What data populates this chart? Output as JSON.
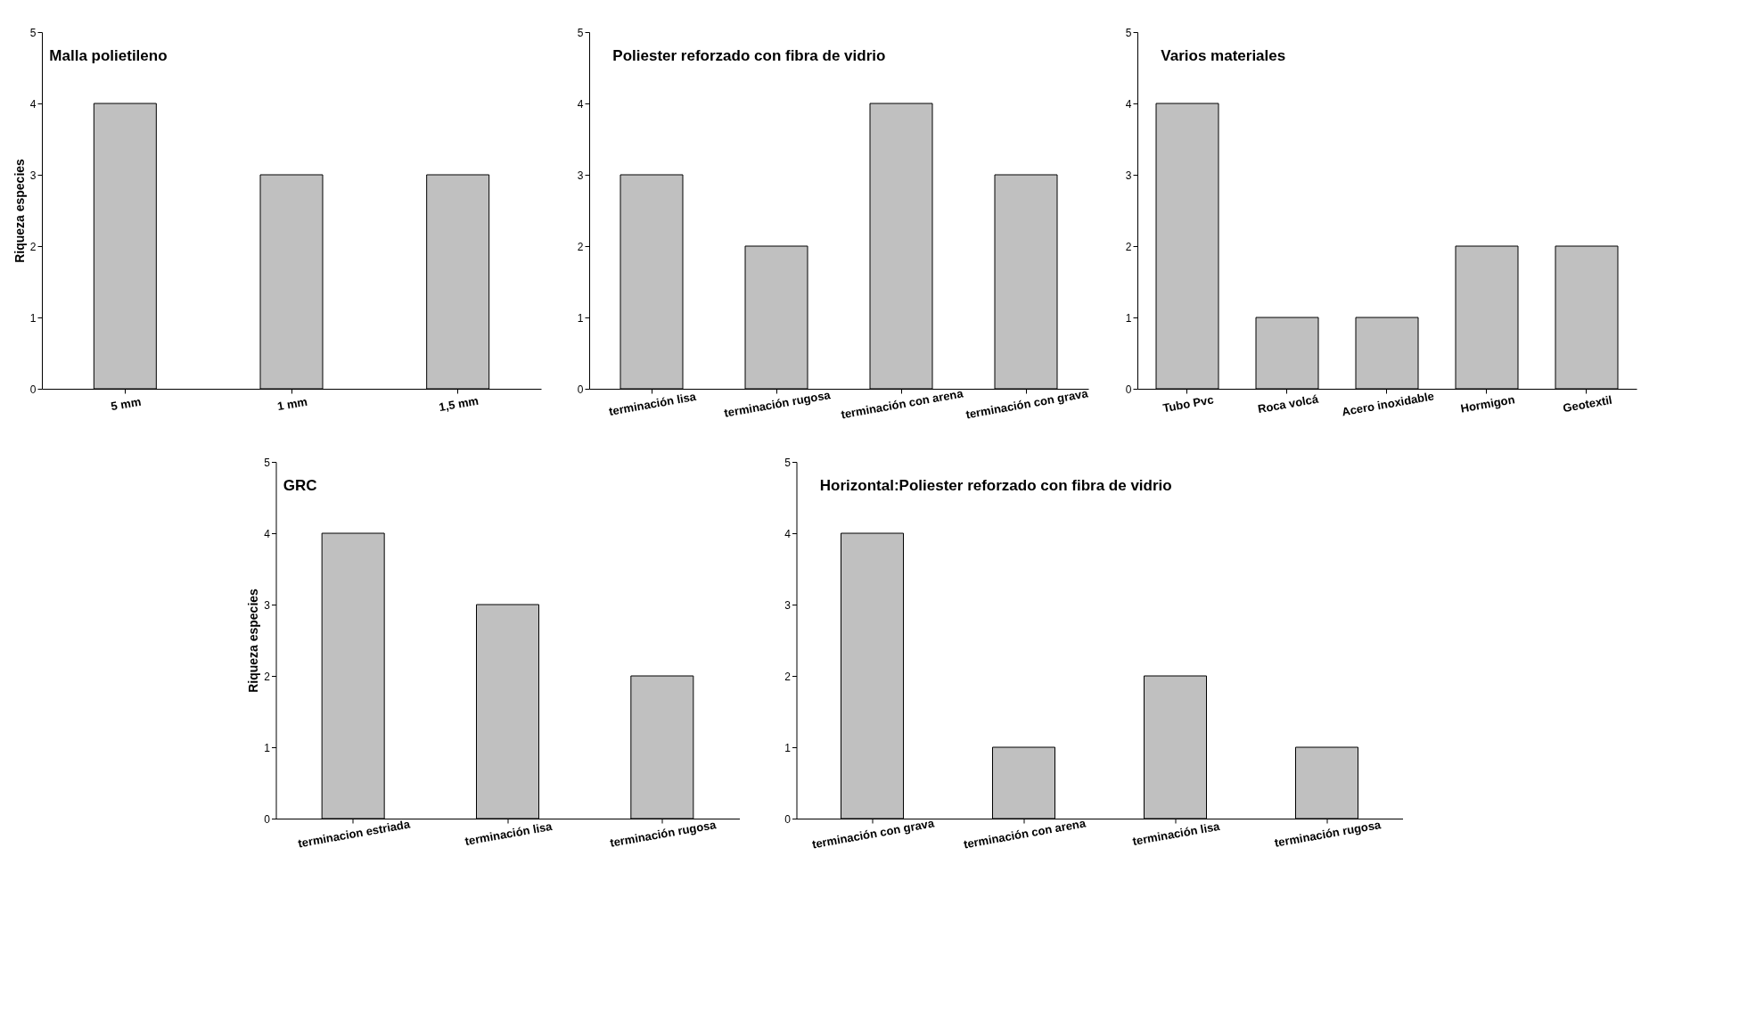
{
  "chart_data": [
    {
      "type": "bar",
      "title": "Malla polietileno",
      "ylabel": "Riqueza especies",
      "categories": [
        "5 mm",
        "1 mm",
        "1,5 mm"
      ],
      "values": [
        4,
        3,
        3
      ],
      "color": "#c0c0c0",
      "ylim": [
        0,
        5
      ],
      "yticks": [
        0,
        1,
        2,
        3,
        4,
        5
      ],
      "grid": false
    },
    {
      "type": "bar",
      "title": "Poliester reforzado con fibra de vidrio",
      "categories": [
        "terminación lisa",
        "terminación rugosa",
        "terminación con arena",
        "terminación con grava"
      ],
      "values": [
        3,
        2,
        4,
        3
      ],
      "color": "#c0c0c0",
      "ylim": [
        0,
        5
      ],
      "yticks": [
        0,
        1,
        2,
        3,
        4,
        5
      ],
      "grid": false
    },
    {
      "type": "bar",
      "title": "Varios materiales",
      "categories": [
        "Tubo Pvc",
        "Roca volcá",
        "Acero inoxidable",
        "Hormigon",
        "Geotextil"
      ],
      "values": [
        4,
        1,
        1,
        2,
        2
      ],
      "color": "#c0c0c0",
      "ylim": [
        0,
        5
      ],
      "yticks": [
        0,
        1,
        2,
        3,
        4,
        5
      ],
      "grid": false
    },
    {
      "type": "bar",
      "title": "GRC",
      "ylabel": "Riqueza especies",
      "categories": [
        "terminacion estriada",
        "terminación lisa",
        "terminación rugosa"
      ],
      "values": [
        4,
        3,
        2
      ],
      "color": "#c0c0c0",
      "ylim": [
        0,
        5
      ],
      "yticks": [
        0,
        1,
        2,
        3,
        4,
        5
      ],
      "grid": false
    },
    {
      "type": "bar",
      "title": "Horizontal:Poliester reforzado con fibra de vidrio",
      "categories": [
        "terminación con grava",
        "terminación con arena",
        "terminación lisa",
        "terminación rugosa"
      ],
      "values": [
        4,
        1,
        2,
        1
      ],
      "color": "#c0c0c0",
      "ylim": [
        0,
        5
      ],
      "yticks": [
        0,
        1,
        2,
        3,
        4,
        5
      ],
      "grid": false
    }
  ]
}
